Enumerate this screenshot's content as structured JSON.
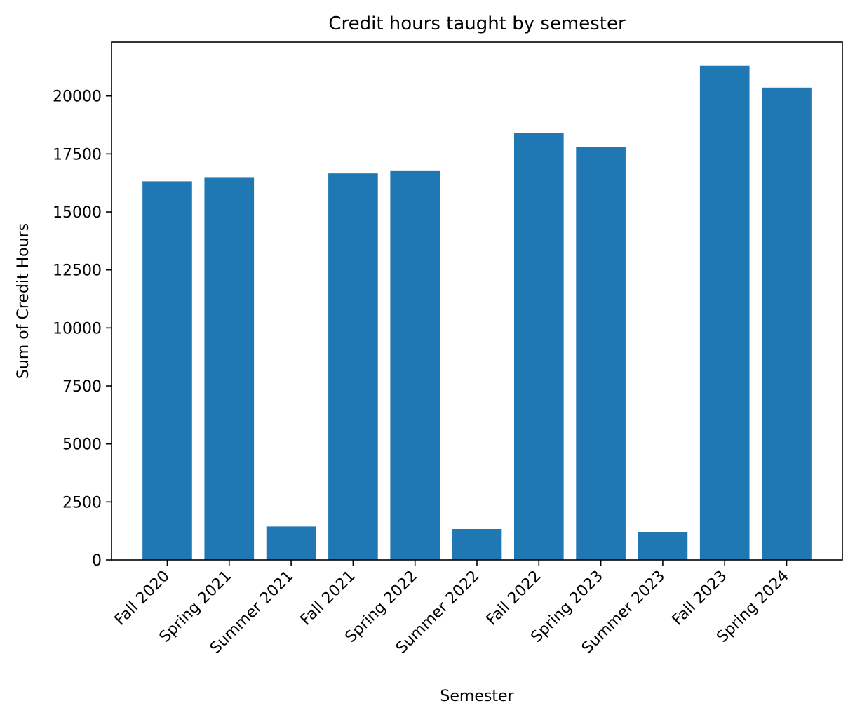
{
  "chart_data": {
    "type": "bar",
    "title": "Credit hours taught by semester",
    "xlabel": "Semester",
    "ylabel": "Sum of Credit Hours",
    "categories": [
      "Fall 2020",
      "Spring 2021",
      "Summer 2021",
      "Fall 2021",
      "Spring 2022",
      "Summer 2022",
      "Fall 2022",
      "Spring 2023",
      "Summer 2023",
      "Fall 2023",
      "Spring 2024"
    ],
    "values": [
      16320,
      16500,
      1440,
      16660,
      16790,
      1330,
      18400,
      17800,
      1210,
      21300,
      20360
    ],
    "ylim": [
      0,
      22320
    ],
    "yticks": [
      0,
      2500,
      5000,
      7500,
      10000,
      12500,
      15000,
      17500,
      20000
    ],
    "ytick_labels": [
      "0",
      "2500",
      "5000",
      "7500",
      "10000",
      "12500",
      "15000",
      "17500",
      "20000"
    ],
    "grid": false,
    "legend": "none",
    "colors": {
      "bar": "#1f77b4",
      "axis": "#000000",
      "background": "#ffffff"
    }
  }
}
